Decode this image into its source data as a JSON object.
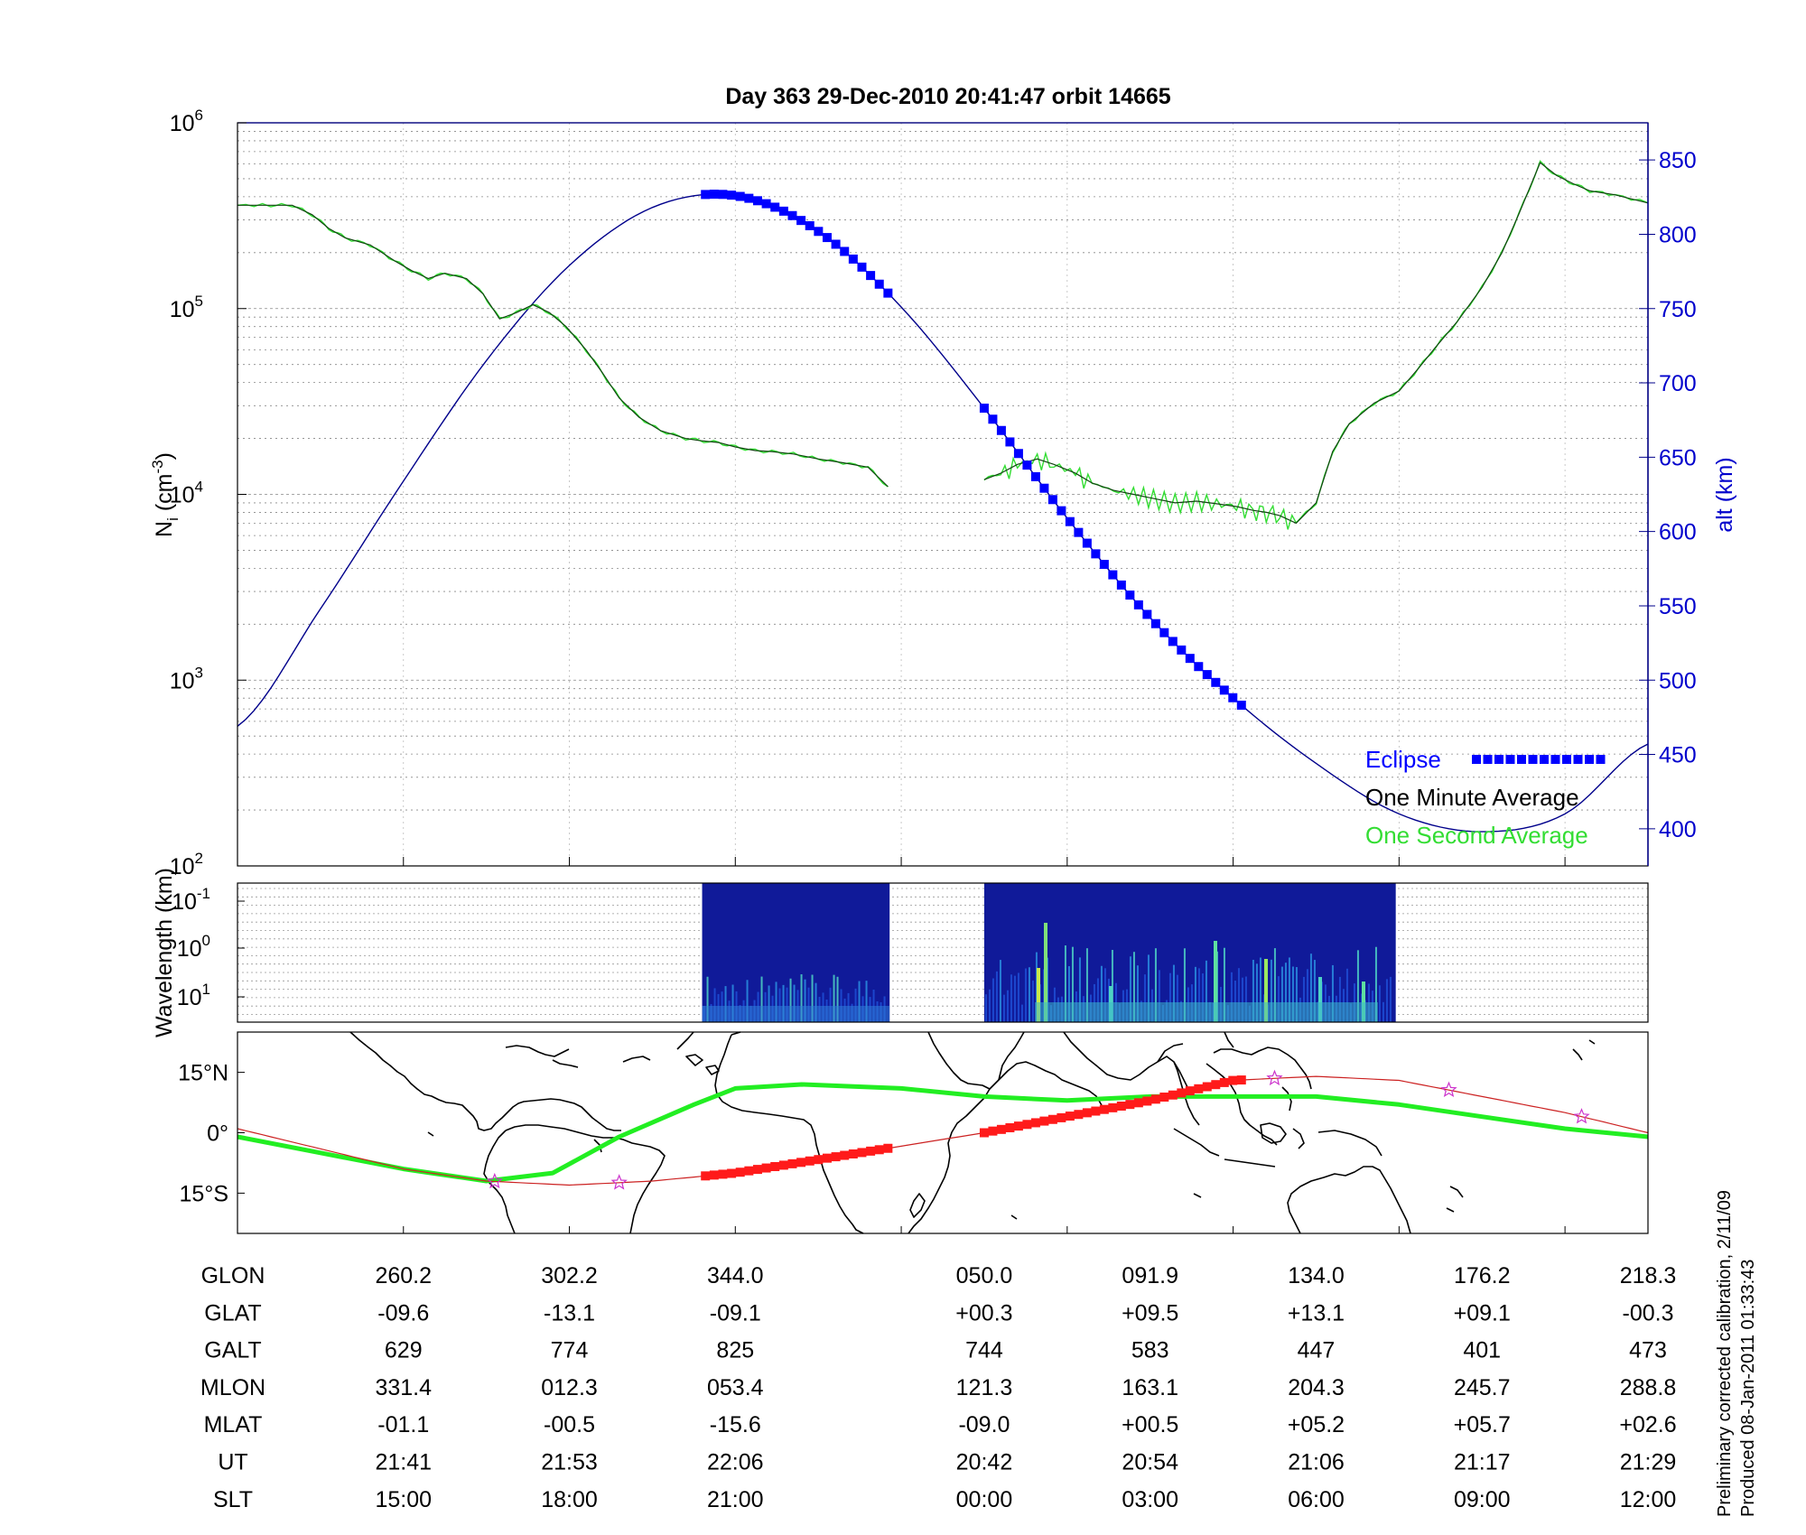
{
  "title": "Day 363  29-Dec-2010 20:41:47   orbit 14665",
  "calibration_note": "Preliminary corrected calibration, 2/11/09",
  "produced_note": "Produced 08-Jan-2011 01:33:43",
  "colors": {
    "alt": "#00008B",
    "eclipse": "#0000FF",
    "minute_avg": "#000000",
    "second_avg": "#33dd33",
    "track_green": "#22ee22",
    "track_red": "#ee2222",
    "eclipse_track": "#ff1a1a",
    "orbit_line": "#cc2222",
    "coast": "#000000",
    "spectrogram_bg": "#101a99"
  },
  "chart_data": [
    {
      "type": "line",
      "panel": "ion-density",
      "ylabel_base": "N",
      "ylabel_sub": "i",
      "ylabel_unit_base": " (cm",
      "ylabel_unit_sup": "-3",
      "ylabel_unit_close": ")",
      "y_scale": "log",
      "ylim": [
        100,
        1000000
      ],
      "y_ticks": [
        {
          "base": "10",
          "exp": "2",
          "value": 100
        },
        {
          "base": "10",
          "exp": "3",
          "value": 1000
        },
        {
          "base": "10",
          "exp": "4",
          "value": 10000
        },
        {
          "base": "10",
          "exp": "5",
          "value": 100000
        },
        {
          "base": "10",
          "exp": "6",
          "value": 1000000
        }
      ],
      "y2label": "alt (km)",
      "y2lim": [
        375,
        875
      ],
      "y2_ticks": [
        "400",
        "450",
        "500",
        "550",
        "600",
        "650",
        "700",
        "750",
        "800",
        "850"
      ],
      "xlim": [
        0,
        8.5
      ],
      "grid": true,
      "legend": {
        "placement": "bottom-right",
        "entries": [
          {
            "label": "Eclipse",
            "series": "eclipse"
          },
          {
            "label": "One Minute Average",
            "series": "minute_avg"
          },
          {
            "label": "One Second Average",
            "series": "second_avg"
          }
        ]
      },
      "series": [
        {
          "key": "ni_segment_1",
          "axis": "left",
          "x": [
            0,
            0.2,
            0.33,
            0.45,
            0.55,
            0.65,
            0.8,
            0.95,
            1.05,
            1.15,
            1.25,
            1.38,
            1.48,
            1.58,
            1.68,
            1.78,
            1.88,
            1.98,
            2.1,
            2.2,
            2.3,
            2.42,
            2.55,
            2.7,
            2.78,
            2.9,
            3.0,
            3.12,
            3.22,
            3.35,
            3.5,
            3.65,
            3.8,
            3.92
          ],
          "y": [
            360000,
            360000,
            360000,
            320000,
            270000,
            240000,
            220000,
            180000,
            160000,
            145000,
            155000,
            145000,
            120000,
            88000,
            95000,
            105000,
            95000,
            80000,
            60000,
            45000,
            33000,
            26000,
            22000,
            20000,
            19500,
            19000,
            18000,
            17200,
            17000,
            16500,
            15500,
            14800,
            14000,
            11000
          ]
        },
        {
          "key": "ni_segment_2",
          "axis": "left",
          "x": [
            4.5,
            4.6,
            4.7,
            4.82,
            4.92,
            5.05,
            5.15,
            5.28,
            5.4,
            5.52,
            5.65,
            5.78,
            5.9,
            6.02,
            6.12,
            6.2,
            6.28,
            6.38,
            6.5,
            6.6,
            6.7,
            6.85,
            7.0,
            7.12,
            7.22,
            7.35,
            7.5,
            7.62,
            7.72,
            7.85,
            7.95,
            8.05,
            8.15,
            8.3,
            8.5
          ],
          "y": [
            12000,
            13000,
            14500,
            15500,
            14500,
            13000,
            11500,
            10500,
            10000,
            9500,
            9000,
            9200,
            8900,
            8600,
            8200,
            8000,
            7700,
            7000,
            9000,
            17000,
            24000,
            31000,
            36000,
            48000,
            62000,
            85000,
            130000,
            200000,
            320000,
            610000,
            520000,
            470000,
            430000,
            410000,
            370000
          ]
        },
        {
          "key": "altitude",
          "axis": "right",
          "x": [
            0,
            0.5,
            1.0,
            1.5,
            2.0,
            2.5,
            3.0,
            3.5,
            4.0,
            4.5,
            5.0,
            5.5,
            6.0,
            6.5,
            7.0,
            7.5,
            8.0,
            8.5
          ],
          "y": [
            469,
            548,
            634,
            715,
            779,
            818,
            826,
            802,
            751,
            683,
            609,
            542,
            488,
            444,
            410,
            398,
            410,
            457
          ]
        },
        {
          "key": "eclipse",
          "axis": "right",
          "segments": [
            {
              "x_start": 2.82,
              "x_end": 3.92
            },
            {
              "x_start": 4.5,
              "x_end": 6.05
            }
          ]
        }
      ]
    },
    {
      "type": "heatmap",
      "panel": "spectrogram",
      "ylabel": "Wavelength (km)",
      "y_ticks": [
        {
          "base": "10",
          "exp": "-1"
        },
        {
          "base": "10",
          "exp": "0"
        },
        {
          "base": "10",
          "exp": "1"
        }
      ],
      "xlim": [
        0,
        8.5
      ],
      "data_segments": [
        {
          "x_start": 2.8,
          "x_end": 3.93
        },
        {
          "x_start": 4.5,
          "x_end": 6.98
        }
      ]
    },
    {
      "type": "line",
      "panel": "ground-track",
      "y_ticks": [
        "15°N",
        "0°",
        "15°S"
      ],
      "ylim": [
        -25,
        25
      ],
      "xlim": [
        0,
        8.5
      ],
      "orbit_track_lat": [
        {
          "x": 0,
          "lat": 1
        },
        {
          "x": 0.5,
          "lat": -4
        },
        {
          "x": 1.0,
          "lat": -9
        },
        {
          "x": 1.5,
          "lat": -12
        },
        {
          "x": 2.0,
          "lat": -13
        },
        {
          "x": 2.5,
          "lat": -12
        },
        {
          "x": 3.0,
          "lat": -10
        },
        {
          "x": 4.5,
          "lat": 0
        },
        {
          "x": 5.0,
          "lat": 4
        },
        {
          "x": 5.5,
          "lat": 8
        },
        {
          "x": 6.0,
          "lat": 13
        },
        {
          "x": 6.5,
          "lat": 14
        },
        {
          "x": 7.0,
          "lat": 13
        },
        {
          "x": 7.5,
          "lat": 9
        },
        {
          "x": 8.0,
          "lat": 5
        },
        {
          "x": 8.5,
          "lat": 0
        }
      ],
      "magnetic_equator_lat": [
        {
          "x": 0,
          "lat": -1
        },
        {
          "x": 0.5,
          "lat": -5
        },
        {
          "x": 1.0,
          "lat": -9
        },
        {
          "x": 1.5,
          "lat": -12
        },
        {
          "x": 1.9,
          "lat": -10
        },
        {
          "x": 2.3,
          "lat": -1
        },
        {
          "x": 2.75,
          "lat": 7
        },
        {
          "x": 3.0,
          "lat": 11
        },
        {
          "x": 3.4,
          "lat": 12
        },
        {
          "x": 4.0,
          "lat": 11
        },
        {
          "x": 4.5,
          "lat": 9
        },
        {
          "x": 5.0,
          "lat": 8
        },
        {
          "x": 5.5,
          "lat": 9
        },
        {
          "x": 6.0,
          "lat": 9
        },
        {
          "x": 6.5,
          "lat": 9
        },
        {
          "x": 7.0,
          "lat": 7
        },
        {
          "x": 7.5,
          "lat": 4
        },
        {
          "x": 8.0,
          "lat": 1
        },
        {
          "x": 8.5,
          "lat": -1
        }
      ],
      "star_markers_x": [
        1.55,
        2.3,
        6.25,
        7.3,
        8.1
      ]
    }
  ],
  "ephemeris": {
    "labels": [
      "GLON",
      "GLAT",
      "GALT",
      "MLON",
      "MLAT",
      "UT",
      "SLT"
    ],
    "x_positions": [
      1,
      2,
      3,
      4.5,
      5.5,
      6.5,
      7.5,
      8.5
    ],
    "rows": [
      [
        "260.2",
        "302.2",
        "344.0",
        "050.0",
        "091.9",
        "134.0",
        "176.2",
        "218.3"
      ],
      [
        "-09.6",
        "-13.1",
        "-09.1",
        "+00.3",
        "+09.5",
        "+13.1",
        "+09.1",
        "-00.3"
      ],
      [
        "629",
        "774",
        "825",
        "744",
        "583",
        "447",
        "401",
        "473"
      ],
      [
        "331.4",
        "012.3",
        "053.4",
        "121.3",
        "163.1",
        "204.3",
        "245.7",
        "288.8"
      ],
      [
        "-01.1",
        "-00.5",
        "-15.6",
        "-09.0",
        "+00.5",
        "+05.2",
        "+05.7",
        "+02.6"
      ],
      [
        "21:41",
        "21:53",
        "22:06",
        "20:42",
        "20:54",
        "21:06",
        "21:17",
        "21:29"
      ],
      [
        "15:00",
        "18:00",
        "21:00",
        "00:00",
        "03:00",
        "06:00",
        "09:00",
        "12:00"
      ]
    ]
  }
}
